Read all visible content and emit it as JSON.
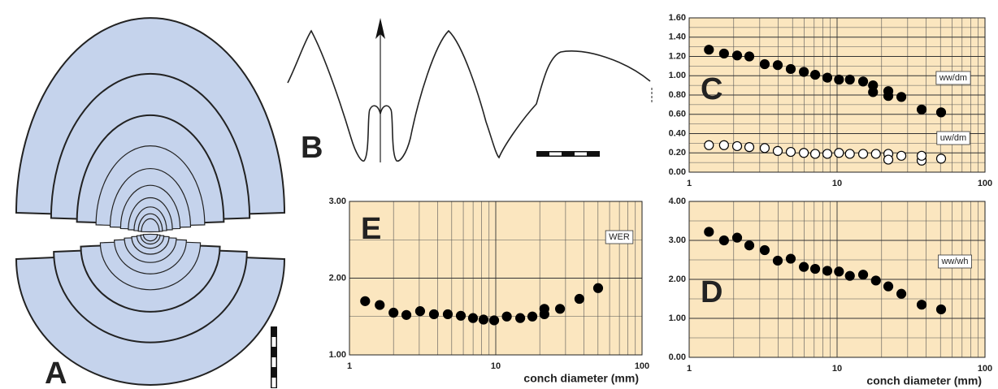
{
  "panels": {
    "a": "A",
    "b": "B"
  },
  "chart_data": [
    {
      "type": "scatter",
      "panel_label": "C",
      "log_x": true,
      "grid": true,
      "xlim": [
        1,
        100
      ],
      "xticks": [
        1,
        10,
        100
      ],
      "ylim": [
        0,
        1.6
      ],
      "yticks": [
        {
          "value": 0,
          "label": "0.00"
        },
        {
          "value": 0.2,
          "label": "0.20"
        },
        {
          "value": 0.4,
          "label": "0.40"
        },
        {
          "value": 0.6,
          "label": "0.60"
        },
        {
          "value": 0.8,
          "label": "0.80"
        },
        {
          "value": 1.0,
          "label": "1.00"
        },
        {
          "value": 1.2,
          "label": "1.20"
        },
        {
          "value": 1.4,
          "label": "1.40"
        },
        {
          "value": 1.6,
          "label": "1.60"
        }
      ],
      "ygrid": [
        0.1,
        0.3,
        0.5,
        0.7,
        0.9,
        1.1,
        1.3,
        1.5
      ],
      "series": [
        {
          "name": "ww/dm",
          "color": "#000000",
          "x": [
            1.36,
            1.72,
            2.11,
            2.55,
            3.24,
            3.97,
            4.86,
            5.96,
            7.11,
            8.59,
            10.3,
            12.2,
            15.0,
            17.5,
            17.5,
            22.2,
            22.2,
            27.2,
            37.3,
            50.5
          ],
          "values": [
            1.27,
            1.23,
            1.21,
            1.2,
            1.12,
            1.11,
            1.07,
            1.04,
            1.01,
            0.98,
            0.96,
            0.96,
            0.94,
            0.9,
            0.83,
            0.84,
            0.79,
            0.78,
            0.65,
            0.62
          ]
        },
        {
          "name": "uw/dm",
          "color": "#ffffff",
          "x": [
            1.36,
            1.72,
            2.11,
            2.55,
            3.24,
            3.97,
            4.86,
            5.96,
            7.11,
            8.59,
            10.3,
            12.2,
            15.0,
            18.3,
            22.2,
            22.2,
            27.2,
            37.3,
            37.3,
            50.5
          ],
          "values": [
            0.28,
            0.28,
            0.27,
            0.26,
            0.25,
            0.22,
            0.21,
            0.2,
            0.19,
            0.19,
            0.2,
            0.19,
            0.19,
            0.19,
            0.19,
            0.13,
            0.17,
            0.12,
            0.17,
            0.14
          ]
        }
      ]
    },
    {
      "type": "scatter",
      "panel_label": "D",
      "log_x": true,
      "grid": true,
      "xlabel": "conch diameter (mm)",
      "xlim": [
        1,
        100
      ],
      "xticks": [
        1,
        10,
        100
      ],
      "ylim": [
        0,
        4
      ],
      "yticks": [
        {
          "value": 0,
          "label": "0.00"
        },
        {
          "value": 1,
          "label": "1.00"
        },
        {
          "value": 2,
          "label": "2.00"
        },
        {
          "value": 3,
          "label": "3.00"
        },
        {
          "value": 4,
          "label": "4.00"
        }
      ],
      "ygrid": [
        0.5,
        1.5,
        2.5,
        3.5
      ],
      "series": [
        {
          "name": "ww/wh",
          "color": "#000000",
          "x": [
            1.36,
            1.72,
            2.11,
            2.55,
            3.24,
            3.97,
            4.86,
            5.96,
            7.11,
            8.59,
            10.3,
            12.2,
            15.0,
            18.3,
            22.2,
            27.2,
            37.3,
            50.5
          ],
          "values": [
            3.22,
            3.0,
            3.07,
            2.87,
            2.75,
            2.48,
            2.53,
            2.32,
            2.27,
            2.22,
            2.2,
            2.09,
            2.12,
            1.97,
            1.82,
            1.63,
            1.35,
            1.23
          ]
        }
      ]
    },
    {
      "type": "scatter",
      "panel_label": "E",
      "log_x": true,
      "grid": true,
      "xlabel": "conch diameter (mm)",
      "xlim": [
        1,
        100
      ],
      "xticks": [
        1,
        10,
        100
      ],
      "ylim": [
        1,
        3
      ],
      "yticks": [
        {
          "value": 1,
          "label": "1.00"
        },
        {
          "value": 2,
          "label": "2.00"
        },
        {
          "value": 3,
          "label": "3.00"
        }
      ],
      "ygrid": [
        1.5,
        2.5
      ],
      "series": [
        {
          "name": "WER",
          "color": "#000000",
          "x": [
            1.28,
            1.61,
            2.0,
            2.45,
            3.04,
            3.78,
            4.7,
            5.77,
            6.99,
            8.25,
            9.75,
            11.9,
            14.7,
            17.8,
            21.5,
            21.5,
            27.5,
            37.3,
            50.1
          ],
          "values": [
            1.7,
            1.65,
            1.55,
            1.52,
            1.57,
            1.53,
            1.53,
            1.51,
            1.48,
            1.46,
            1.45,
            1.5,
            1.48,
            1.5,
            1.53,
            1.6,
            1.6,
            1.73,
            1.87
          ]
        }
      ]
    }
  ]
}
